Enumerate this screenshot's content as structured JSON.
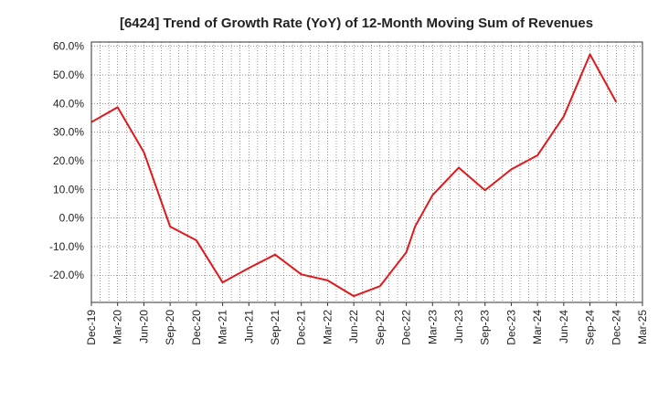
{
  "chart_data": {
    "type": "line",
    "title": "[6424]  Trend of Growth Rate (YoY) of 12-Month Moving Sum of Revenues",
    "xlabel": "",
    "ylabel": "",
    "x_ticks": [
      "Dec-19",
      "Mar-20",
      "Jun-20",
      "Sep-20",
      "Dec-20",
      "Mar-21",
      "Jun-21",
      "Sep-21",
      "Dec-21",
      "Mar-22",
      "Jun-22",
      "Sep-22",
      "Dec-22",
      "Mar-23",
      "Jun-23",
      "Sep-23",
      "Dec-23",
      "Mar-24",
      "Jun-24",
      "Sep-24",
      "Dec-24",
      "Mar-25"
    ],
    "y_ticks": [
      "60.0%",
      "50.0%",
      "40.0%",
      "30.0%",
      "20.0%",
      "10.0%",
      "0.0%",
      "-10.0%",
      "-20.0%"
    ],
    "ylim": [
      -29.5,
      61.5
    ],
    "grid": true,
    "series": [
      {
        "color": "#e0191c",
        "x": [
          "Dec-19",
          "Mar-20",
          "Jun-20",
          "Sep-20",
          "Dec-20",
          "Mar-21",
          "Jun-21",
          "Sep-21",
          "Dec-21",
          "Mar-22",
          "Jun-22",
          "Sep-22",
          "Dec-22",
          "Jan-23",
          "Mar-23",
          "Jun-23",
          "Sep-23",
          "Dec-23",
          "Mar-24",
          "Jun-24",
          "Sep-24",
          "Dec-24"
        ],
        "values": [
          33.5,
          38.7,
          23.0,
          -3.0,
          -7.8,
          -22.5,
          -17.5,
          -12.8,
          -19.7,
          -21.8,
          -27.3,
          -23.8,
          -12.0,
          -3.0,
          8.0,
          17.6,
          9.7,
          17.0,
          21.9,
          35.5,
          57.2,
          40.5
        ]
      }
    ]
  }
}
